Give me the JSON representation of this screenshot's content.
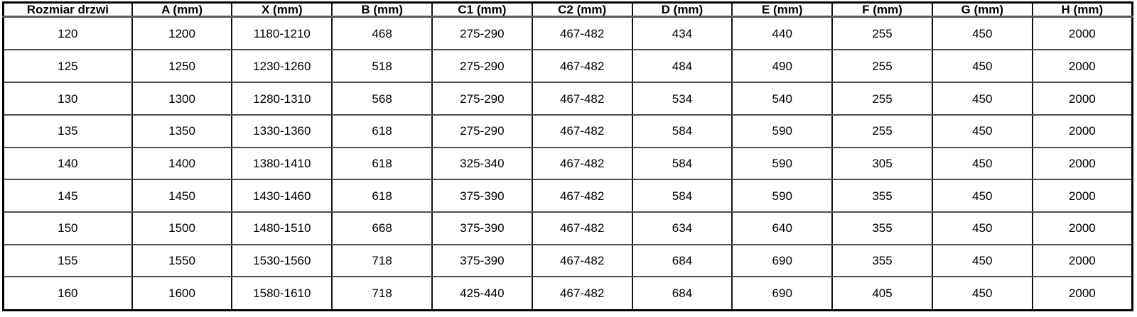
{
  "table": {
    "columns": [
      "Rozmiar drzwi",
      "A (mm)",
      "X (mm)",
      "B (mm)",
      "C1 (mm)",
      "C2 (mm)",
      "D (mm)",
      "E (mm)",
      "F (mm)",
      "G (mm)",
      "H (mm)"
    ],
    "rows": [
      [
        "120",
        "1200",
        "1180-1210",
        "468",
        "275-290",
        "467-482",
        "434",
        "440",
        "255",
        "450",
        "2000"
      ],
      [
        "125",
        "1250",
        "1230-1260",
        "518",
        "275-290",
        "467-482",
        "484",
        "490",
        "255",
        "450",
        "2000"
      ],
      [
        "130",
        "1300",
        "1280-1310",
        "568",
        "275-290",
        "467-482",
        "534",
        "540",
        "255",
        "450",
        "2000"
      ],
      [
        "135",
        "1350",
        "1330-1360",
        "618",
        "275-290",
        "467-482",
        "584",
        "590",
        "255",
        "450",
        "2000"
      ],
      [
        "140",
        "1400",
        "1380-1410",
        "618",
        "325-340",
        "467-482",
        "584",
        "590",
        "305",
        "450",
        "2000"
      ],
      [
        "145",
        "1450",
        "1430-1460",
        "618",
        "375-390",
        "467-482",
        "584",
        "590",
        "355",
        "450",
        "2000"
      ],
      [
        "150",
        "1500",
        "1480-1510",
        "668",
        "375-390",
        "467-482",
        "634",
        "640",
        "355",
        "450",
        "2000"
      ],
      [
        "155",
        "1550",
        "1530-1560",
        "718",
        "375-390",
        "467-482",
        "684",
        "690",
        "355",
        "450",
        "2000"
      ],
      [
        "160",
        "1600",
        "1580-1610",
        "718",
        "425-440",
        "467-482",
        "684",
        "690",
        "405",
        "450",
        "2000"
      ]
    ]
  },
  "colors": {
    "background": "#ffffff",
    "text": "#000000",
    "outer_border": "#000000",
    "vertical_border": "#141414",
    "horizontal_border": "#4d4d4d"
  }
}
